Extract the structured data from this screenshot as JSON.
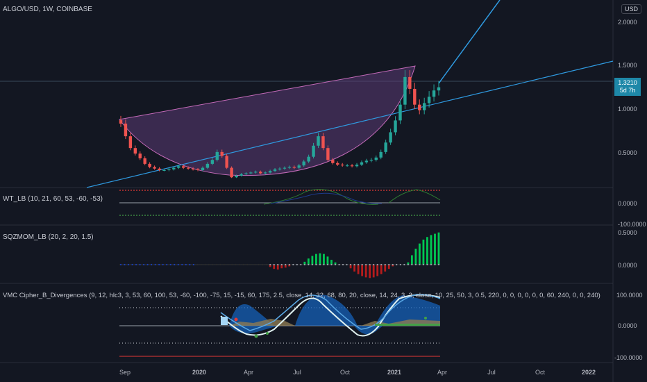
{
  "header": {
    "symbol_title": "ALGO/USD, 1W, COINBASE",
    "currency_button": "USD",
    "last_price": "1.3210",
    "countdown": "5d 7h"
  },
  "colors": {
    "background": "#131722",
    "up": "#26a69a",
    "down": "#ef5350",
    "trendline": "#2f9ae0",
    "cup_fill": "#5b3a74",
    "wt_red": "#e53935",
    "wt_green": "#43a047",
    "sqz_green": "#00c853",
    "sqz_red": "#b71c1c"
  },
  "chart_data": [
    {
      "type": "line",
      "pane": "price",
      "series": [
        {
          "values": [
            0.86,
            0.7,
            0.55,
            0.48,
            0.42,
            0.35,
            0.31,
            0.29,
            0.27,
            0.27,
            0.28,
            0.3,
            0.32,
            0.3,
            0.29,
            0.28,
            0.27,
            0.3,
            0.35,
            0.4,
            0.5,
            0.45,
            0.3,
            0.18,
            0.2,
            0.22,
            0.23,
            0.24,
            0.25,
            0.23,
            0.24,
            0.26,
            0.28,
            0.29,
            0.3,
            0.31,
            0.3,
            0.33,
            0.38,
            0.44,
            0.58,
            0.7,
            0.55,
            0.4,
            0.36,
            0.34,
            0.33,
            0.33,
            0.32,
            0.34,
            0.37,
            0.39,
            0.4,
            0.43,
            0.5,
            0.62,
            0.75,
            0.9,
            1.1,
            1.45,
            1.3,
            1.1,
            1.03,
            1.12,
            1.2,
            1.28,
            1.32
          ]
        }
      ],
      "yticks": [
        "2.0000",
        "1.5000",
        "1.0000",
        "0.5000"
      ],
      "ylim": [
        0.05,
        2.25
      ],
      "x_labels": [
        "Sep",
        "2020",
        "Apr",
        "Jul",
        "Oct",
        "2021",
        "Apr",
        "Jul",
        "Oct",
        "2022"
      ]
    },
    {
      "type": "line",
      "pane": "wt",
      "title": "WT_LB (10, 21, 60, 53, -60, -53)",
      "yticks": [
        "0.0000",
        "-100.0000"
      ],
      "ylim": [
        -110,
        90
      ]
    },
    {
      "type": "bar",
      "pane": "sqz",
      "title": "SQZMOM_LB (20, 2, 20, 1.5)",
      "yticks": [
        "0.5000",
        "0.0000"
      ],
      "ylim": [
        -0.25,
        0.55
      ],
      "values": [
        0,
        0,
        0,
        0,
        0,
        0,
        0,
        0,
        0,
        0,
        0,
        0,
        0,
        0,
        0,
        0,
        0,
        0,
        0,
        0,
        0,
        0,
        0,
        0,
        0,
        0,
        0,
        0,
        0,
        0,
        0,
        0,
        0,
        0,
        0,
        0,
        0,
        0,
        0,
        -0.03,
        -0.06,
        -0.07,
        -0.05,
        -0.04,
        -0.02,
        0,
        0,
        0,
        0.05,
        0.1,
        0.14,
        0.17,
        0.18,
        0.17,
        0.13,
        0.08,
        0.04,
        0,
        0,
        0,
        -0.05,
        -0.1,
        -0.14,
        -0.17,
        -0.19,
        -0.2,
        -0.19,
        -0.17,
        -0.14,
        -0.1,
        -0.06,
        -0.02,
        0,
        0,
        0,
        0.04,
        0.15,
        0.25,
        0.33,
        0.39,
        0.43,
        0.46,
        0.48,
        0.5
      ]
    },
    {
      "type": "area",
      "pane": "vmc",
      "title": "VMC Cipher_B_Divergences (9, 12, hlc3, 3, 53, 60, 100, 53, -60, -100, -75, 15, -15, 60, 175, 2.5, close, 14, 32, 68, 80, 20, close, 14, 24, 3, 3, close, 10, 25, 50, 3, 0.5, 220, 0, 0, 0, 0, 0, 0, 60, 240, 0, 0, 240)",
      "yticks": [
        "100.0000",
        "0.0000",
        "-100.0000"
      ],
      "ylim": [
        -110,
        110
      ]
    }
  ]
}
